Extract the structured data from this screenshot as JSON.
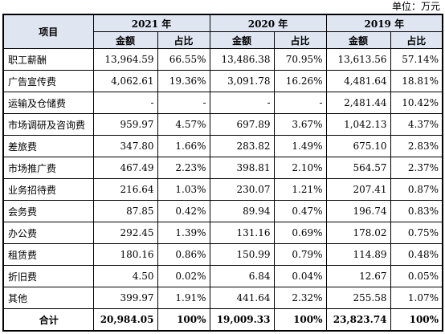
{
  "unit": "单位：万元",
  "header": {
    "item": "项目",
    "years": [
      "2021 年",
      "2020 年",
      "2019 年"
    ],
    "amount": "金额",
    "ratio": "占比"
  },
  "rows": [
    {
      "label": "职工薪酬",
      "v": [
        "13,964.59",
        "66.55%",
        "13,486.38",
        "70.95%",
        "13,613.56",
        "57.14%"
      ]
    },
    {
      "label": "广告宣传费",
      "v": [
        "4,062.61",
        "19.36%",
        "3,091.78",
        "16.26%",
        "4,481.64",
        "18.81%"
      ]
    },
    {
      "label": "运输及仓储费",
      "v": [
        "-",
        "-",
        "-",
        "-",
        "2,481.44",
        "10.42%"
      ]
    },
    {
      "label": "市场调研及咨询费",
      "v": [
        "959.97",
        "4.57%",
        "697.89",
        "3.67%",
        "1,042.13",
        "4.37%"
      ]
    },
    {
      "label": "差旅费",
      "v": [
        "347.80",
        "1.66%",
        "283.82",
        "1.49%",
        "675.10",
        "2.83%"
      ]
    },
    {
      "label": "市场推广费",
      "v": [
        "467.49",
        "2.23%",
        "398.81",
        "2.10%",
        "564.57",
        "2.37%"
      ]
    },
    {
      "label": "业务招待费",
      "v": [
        "216.64",
        "1.03%",
        "230.07",
        "1.21%",
        "207.41",
        "0.87%"
      ]
    },
    {
      "label": "会务费",
      "v": [
        "87.85",
        "0.42%",
        "89.94",
        "0.47%",
        "196.74",
        "0.83%"
      ]
    },
    {
      "label": "办公费",
      "v": [
        "292.45",
        "1.39%",
        "131.16",
        "0.69%",
        "178.02",
        "0.75%"
      ]
    },
    {
      "label": "租赁费",
      "v": [
        "180.16",
        "0.86%",
        "150.99",
        "0.79%",
        "114.89",
        "0.48%"
      ]
    },
    {
      "label": "折旧费",
      "v": [
        "4.50",
        "0.02%",
        "6.84",
        "0.04%",
        "12.67",
        "0.05%"
      ]
    },
    {
      "label": "其他",
      "v": [
        "399.97",
        "1.91%",
        "441.64",
        "2.32%",
        "255.58",
        "1.07%"
      ]
    }
  ],
  "total": {
    "label": "合计",
    "v": [
      "20,984.05",
      "100%",
      "19,009.33",
      "100%",
      "23,823.74",
      "100%"
    ]
  }
}
